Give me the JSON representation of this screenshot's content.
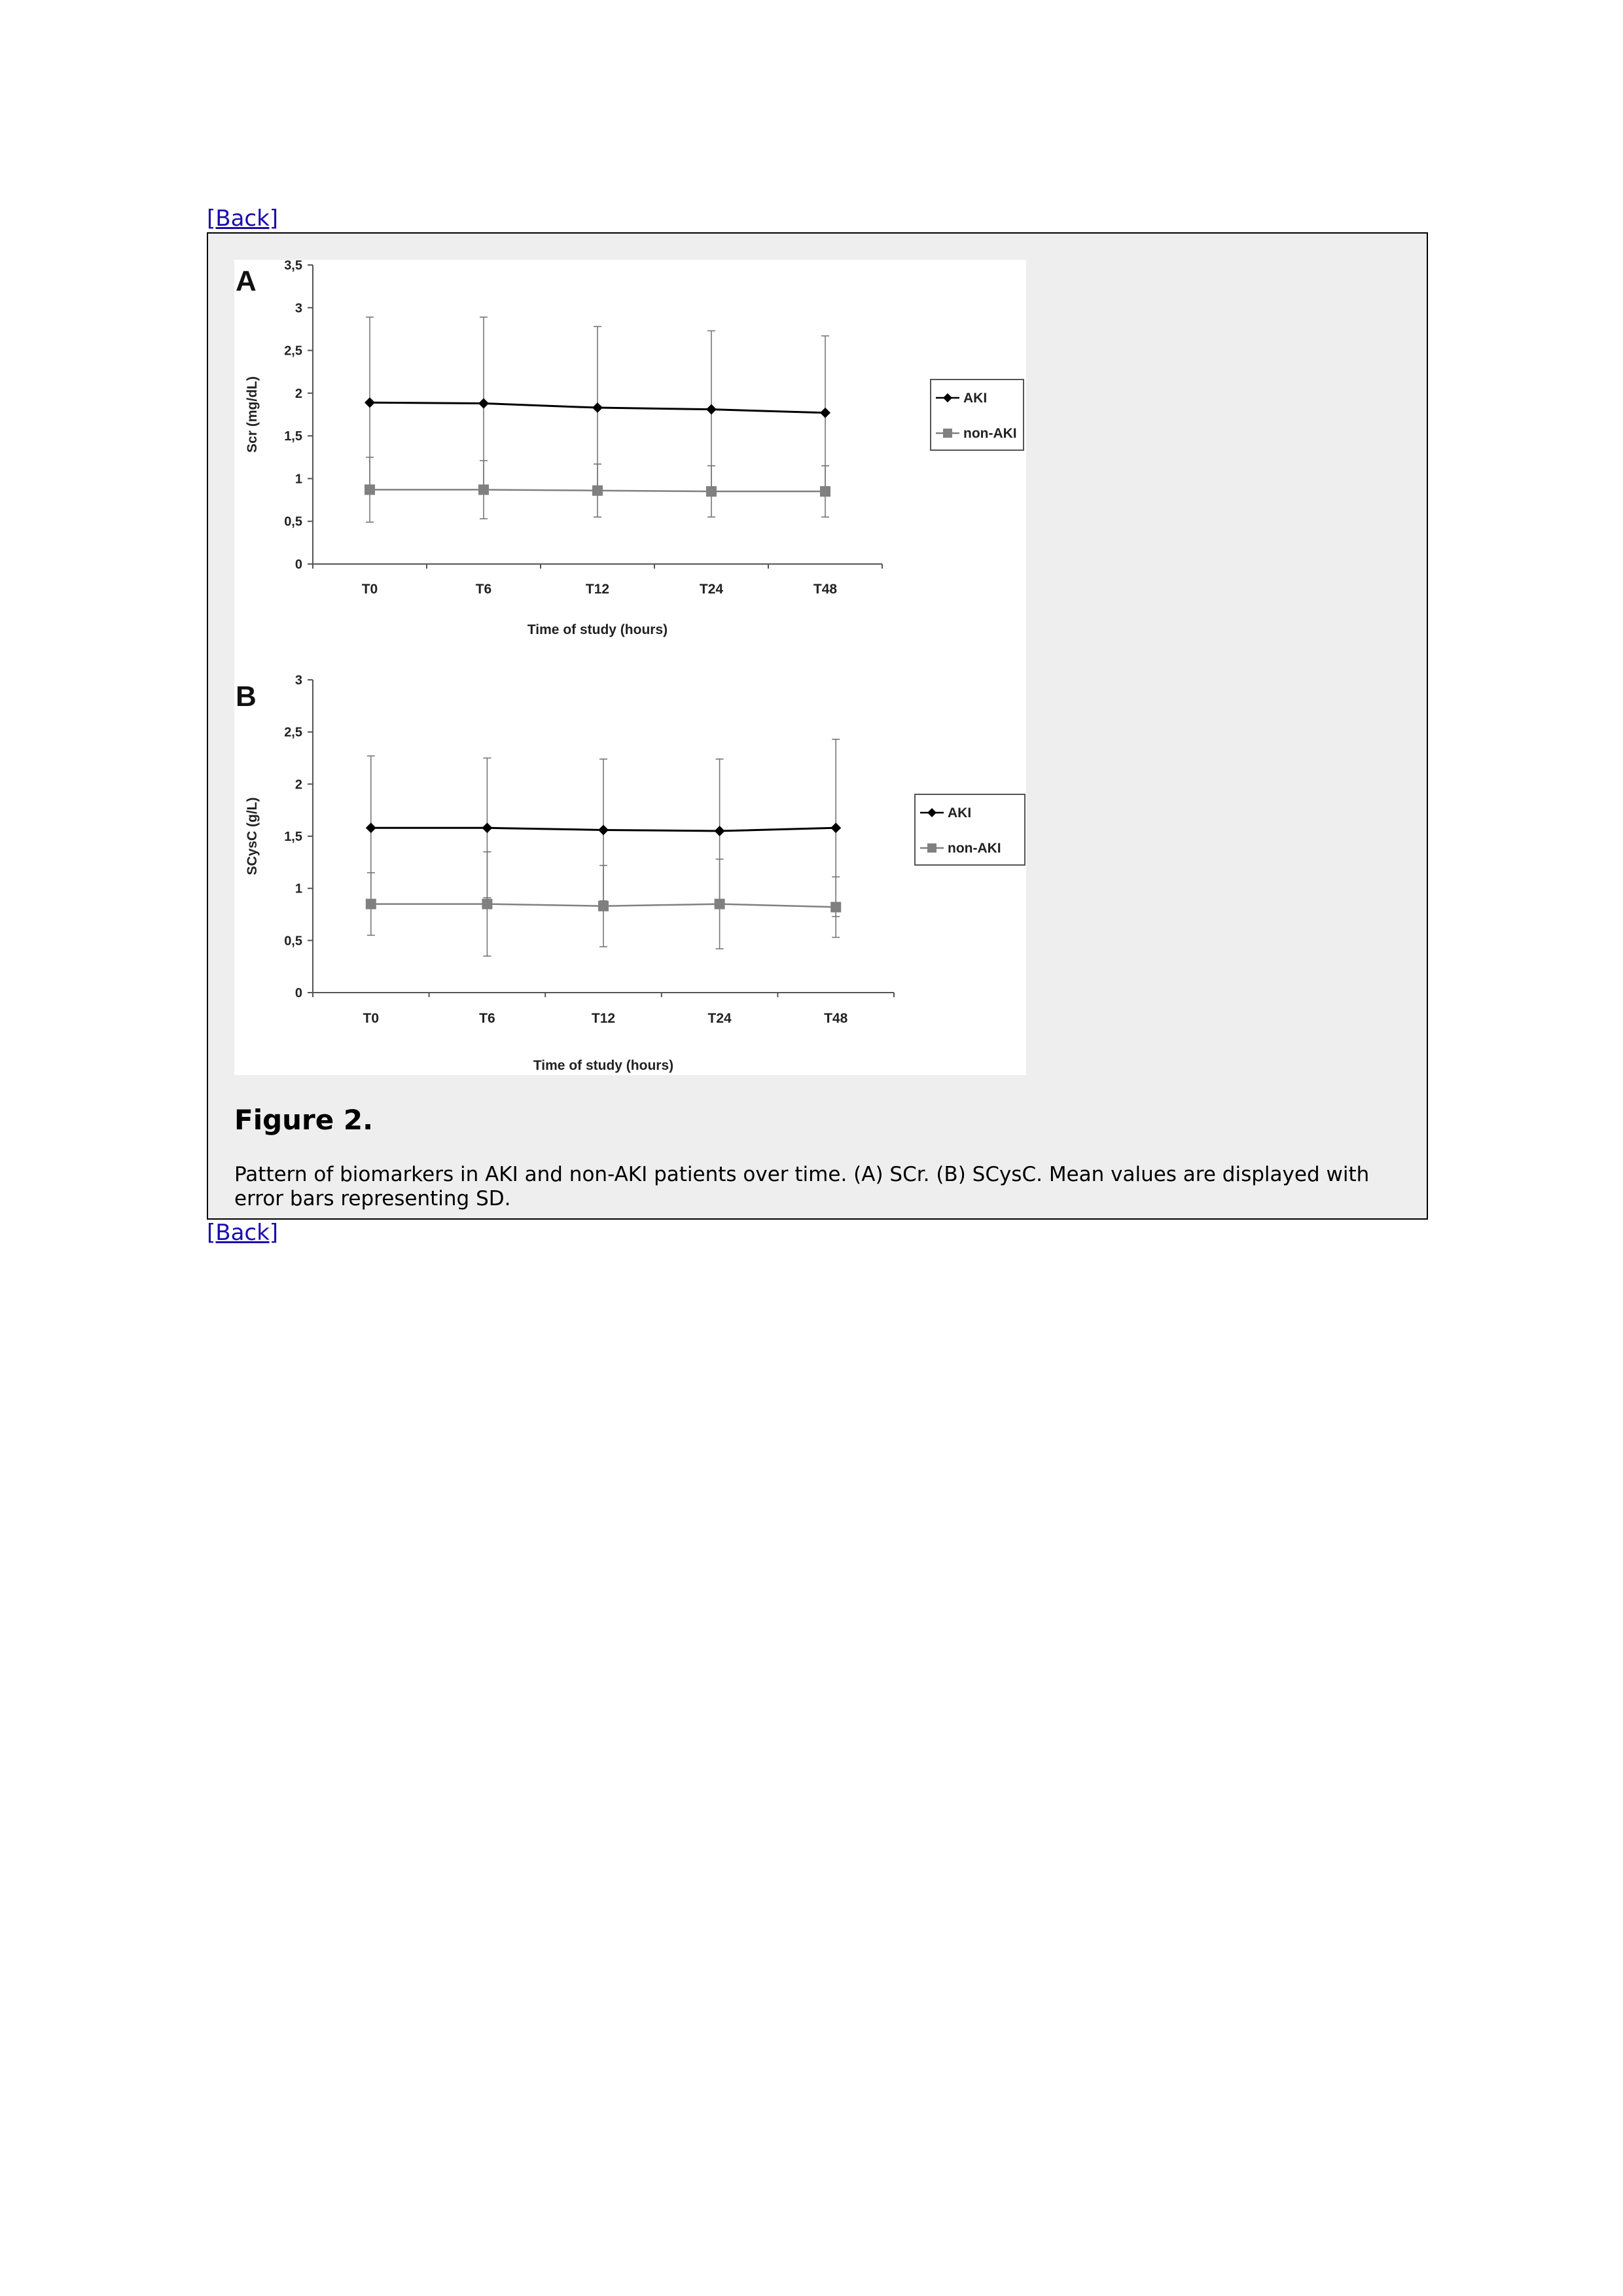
{
  "nav": {
    "back_label": "[Back]"
  },
  "figure": {
    "title": "Figure 2.",
    "caption": "Pattern of biomarkers in AKI and non-AKI patients over time. (A) SCr. (B) SCysC. Mean values are displayed with error bars representing SD."
  },
  "colors": {
    "aki": "#000000",
    "non_aki": "#808080",
    "error_bar": "#777777"
  },
  "chart_data": [
    {
      "panel_label": "A",
      "type": "line",
      "categories": [
        "T0",
        "T6",
        "T12",
        "T24",
        "T48"
      ],
      "xlabel": "Time of study (hours)",
      "ylabel": "Scr (mg/dL)",
      "ylim": [
        0,
        3.5
      ],
      "yticks": [
        0,
        0.5,
        1,
        1.5,
        2,
        2.5,
        3,
        3.5
      ],
      "ytick_labels": [
        "0",
        "0,5",
        "1",
        "1,5",
        "2",
        "2,5",
        "3",
        "3,5"
      ],
      "legend_position": "right",
      "series": [
        {
          "name": "AKI",
          "marker": "diamond",
          "values": [
            1.89,
            1.88,
            1.83,
            1.81,
            1.77
          ],
          "error": [
            1.0,
            1.01,
            0.95,
            0.92,
            0.9
          ]
        },
        {
          "name": "non-AKI",
          "marker": "square",
          "values": [
            0.87,
            0.87,
            0.86,
            0.85,
            0.85
          ],
          "error": [
            0.38,
            0.34,
            0.31,
            0.3,
            0.3
          ]
        }
      ]
    },
    {
      "panel_label": "B",
      "type": "line",
      "categories": [
        "T0",
        "T6",
        "T12",
        "T24",
        "T48"
      ],
      "xlabel": "Time of study (hours)",
      "ylabel": "SCysC (g/L)",
      "ylim": [
        0,
        3
      ],
      "yticks": [
        0,
        0.5,
        1,
        1.5,
        2,
        2.5,
        3
      ],
      "ytick_labels": [
        "0",
        "0,5",
        "1",
        "1,5",
        "2",
        "2,5",
        "3"
      ],
      "legend_position": "right",
      "series": [
        {
          "name": "AKI",
          "marker": "diamond",
          "values": [
            1.58,
            1.58,
            1.56,
            1.55,
            1.58
          ],
          "error": [
            0.69,
            0.67,
            0.68,
            0.69,
            0.85
          ]
        },
        {
          "name": "non-AKI",
          "marker": "square",
          "values": [
            0.85,
            0.85,
            0.83,
            0.85,
            0.82
          ],
          "error": [
            0.3,
            0.5,
            0.39,
            0.43,
            0.29
          ]
        }
      ]
    }
  ]
}
